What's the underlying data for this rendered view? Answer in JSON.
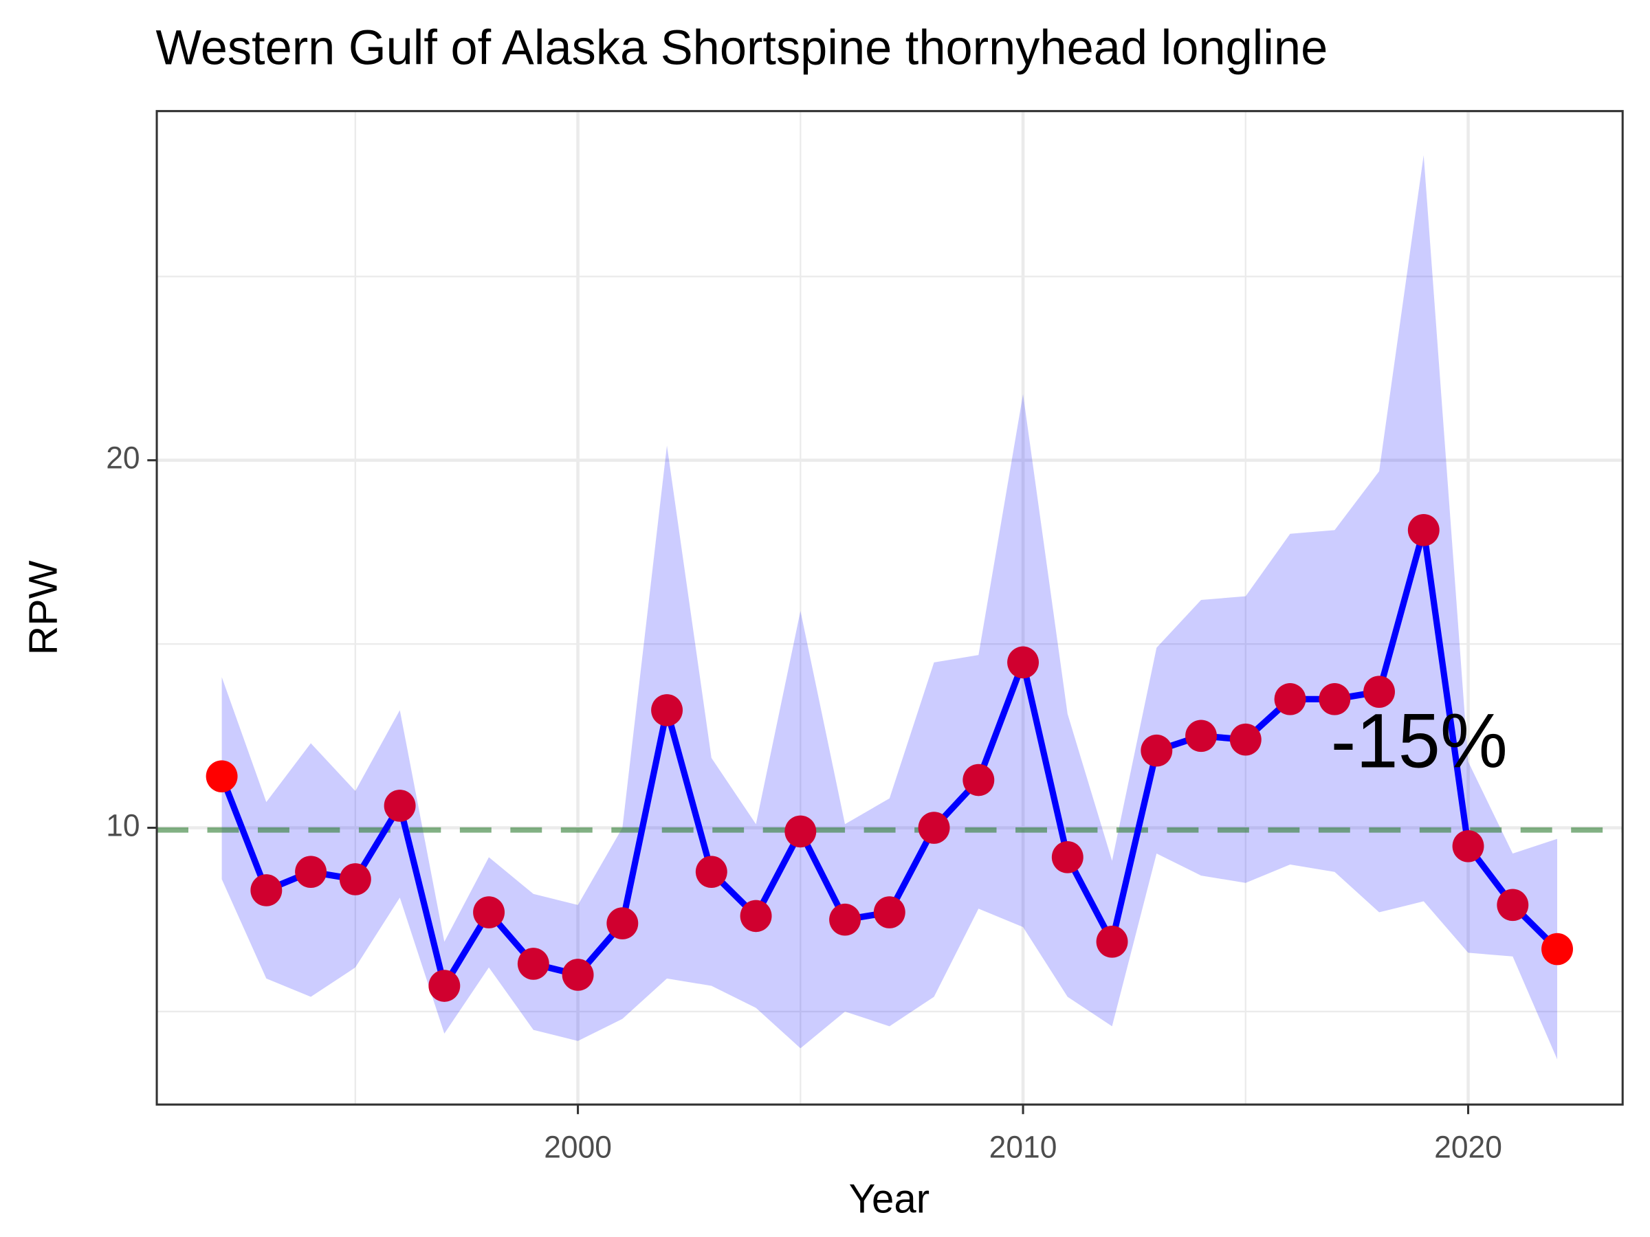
{
  "chart_data": {
    "type": "line",
    "title": "Western Gulf of Alaska Shortspine thornyhead longline",
    "x_label": "Year",
    "y_label": "RPW",
    "x": [
      1992,
      1993,
      1994,
      1995,
      1996,
      1997,
      1998,
      1999,
      2000,
      2001,
      2002,
      2003,
      2004,
      2005,
      2006,
      2007,
      2008,
      2009,
      2010,
      2011,
      2012,
      2013,
      2014,
      2015,
      2016,
      2017,
      2018,
      2019,
      2020,
      2021,
      2022
    ],
    "values": [
      11.4,
      8.3,
      8.8,
      8.6,
      10.6,
      5.7,
      7.7,
      6.3,
      6.0,
      7.4,
      13.2,
      8.8,
      7.6,
      9.9,
      7.5,
      7.7,
      10.0,
      11.3,
      14.5,
      9.2,
      6.9,
      12.1,
      12.5,
      12.4,
      13.5,
      13.5,
      13.7,
      18.1,
      9.5,
      7.9,
      6.7
    ],
    "upper": [
      14.1,
      10.7,
      12.3,
      11.0,
      13.2,
      6.9,
      9.2,
      8.2,
      7.9,
      10.0,
      20.4,
      11.9,
      10.1,
      15.9,
      10.1,
      10.8,
      14.5,
      14.7,
      21.8,
      13.1,
      9.1,
      14.9,
      16.2,
      16.3,
      18.0,
      18.1,
      19.7,
      28.3,
      11.8,
      9.3,
      9.7
    ],
    "lower": [
      8.6,
      5.9,
      5.4,
      6.2,
      8.1,
      4.4,
      6.2,
      4.5,
      4.2,
      4.8,
      5.9,
      5.7,
      5.1,
      4.0,
      5.0,
      4.6,
      5.4,
      7.8,
      7.3,
      5.4,
      4.6,
      9.3,
      8.7,
      8.5,
      9.0,
      8.8,
      7.7,
      8.0,
      6.6,
      6.5,
      3.7
    ],
    "line_color": "#0000ff",
    "point_color": "#d0002f",
    "endpoint_color": "#ff0000",
    "ribbon_color": "#0000ff",
    "xlim": [
      1990.54,
      2023.47
    ],
    "ylim": [
      2.47,
      29.5
    ],
    "xticks": [
      2000,
      2010,
      2020
    ],
    "yticks": [
      10,
      20
    ],
    "xminor": [
      1995,
      2005,
      2015
    ],
    "yminor": [
      5,
      15,
      25
    ],
    "grid": true,
    "hline": {
      "value": 9.94,
      "color": "#2e7d32"
    },
    "annotation": {
      "text": "-15%",
      "x": 2018.9,
      "y": 12.2
    }
  }
}
